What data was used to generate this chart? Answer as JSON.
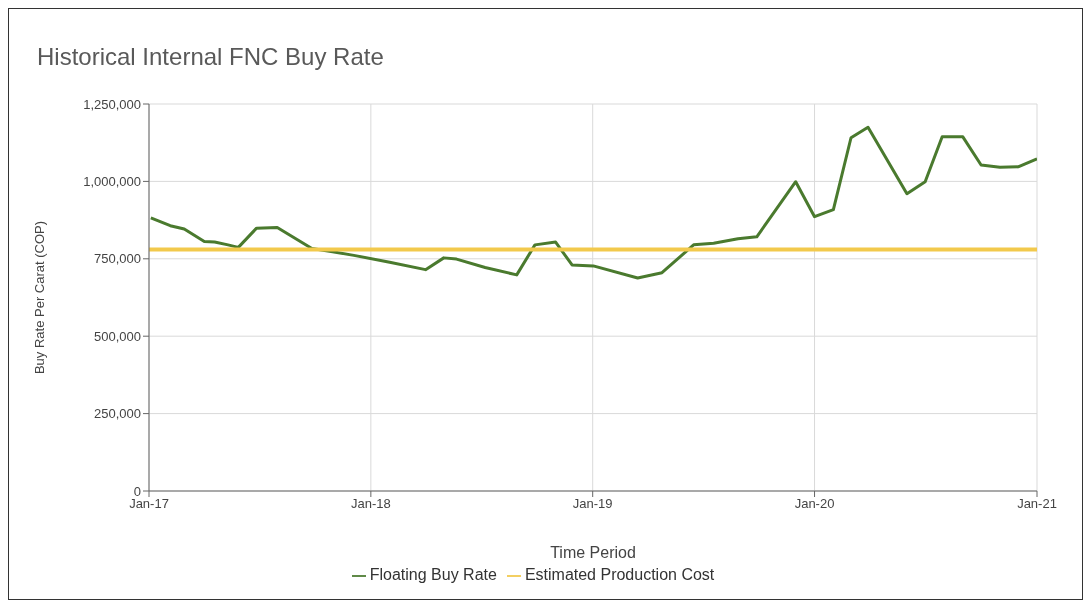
{
  "chart_data": {
    "type": "line",
    "title": "Historical Internal FNC Buy Rate",
    "xlabel": "Time Period",
    "ylabel": "Buy Rate Per Carat (COP)",
    "xlim": [
      "2017-01-01",
      "2021-01-01"
    ],
    "xticks": [
      {
        "value": "2017-01-01",
        "label": "Jan-17"
      },
      {
        "value": "2018-01-01",
        "label": "Jan-18"
      },
      {
        "value": "2019-01-01",
        "label": "Jan-19"
      },
      {
        "value": "2020-01-01",
        "label": "Jan-20"
      },
      {
        "value": "2021-01-01",
        "label": "Jan-21"
      }
    ],
    "ylim": [
      0,
      1250000
    ],
    "yticks": [
      {
        "value": 0,
        "label": "0"
      },
      {
        "value": 250000,
        "label": "250,000"
      },
      {
        "value": 500000,
        "label": "500,000"
      },
      {
        "value": 750000,
        "label": "750,000"
      },
      {
        "value": 1000000,
        "label": "1,000,000"
      },
      {
        "value": 1250000,
        "label": "1,250,000"
      }
    ],
    "grid": true,
    "legend": "bottom",
    "marker": "none",
    "line_style": "solid",
    "series": [
      {
        "name": "Floating Buy Rate",
        "color": "#4a7a2e",
        "x": [
          "2017-01-04",
          "2017-02-05",
          "2017-02-28",
          "2017-04-02",
          "2017-04-19",
          "2017-05-11",
          "2017-05-28",
          "2017-06-27",
          "2017-07-31",
          "2017-09-26",
          "2017-10-30",
          "2017-12-04",
          "2018-02-01",
          "2018-04-01",
          "2018-05-01",
          "2018-05-22",
          "2018-07-08",
          "2018-08-29",
          "2018-09-28",
          "2018-11-01",
          "2018-11-28",
          "2019-01-02",
          "2019-03-16",
          "2019-04-25",
          "2019-06-16",
          "2019-07-19",
          "2019-08-28",
          "2019-09-28",
          "2019-12-01",
          "2020-01-01",
          "2020-02-01",
          "2020-03-01",
          "2020-03-29",
          "2020-06-01",
          "2020-07-01",
          "2020-07-29",
          "2020-09-01",
          "2020-10-01",
          "2020-11-01",
          "2020-12-01",
          "2021-01-01"
        ],
        "values": [
          882000,
          857000,
          846000,
          806000,
          804000,
          795000,
          787000,
          849000,
          851000,
          783000,
          773000,
          761000,
          739000,
          715000,
          753000,
          749000,
          722000,
          698000,
          795000,
          804000,
          730000,
          727000,
          688000,
          705000,
          795000,
          800000,
          815000,
          821000,
          999000,
          886000,
          909000,
          1141000,
          1175000,
          960000,
          999000,
          1144000,
          1144000,
          1053000,
          1046000,
          1047000,
          1073000
        ]
      },
      {
        "name": "Estimated Production Cost",
        "color": "#f2c94c",
        "x": [
          "2017-01-01",
          "2021-01-01"
        ],
        "values": [
          780000,
          780000
        ]
      }
    ]
  }
}
